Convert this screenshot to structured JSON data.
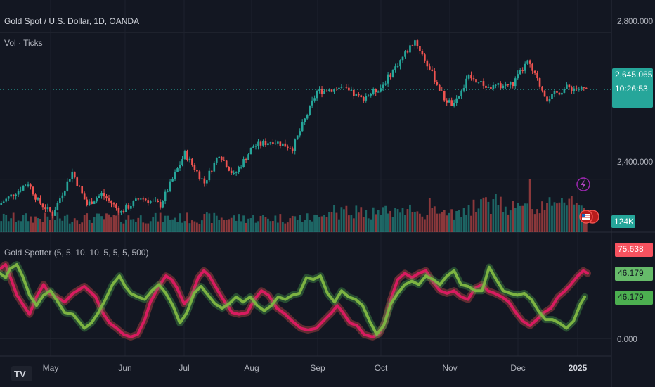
{
  "header": {
    "symbol": "Gold Spot / U.S. Dollar, 1D, OANDA",
    "volume_label": "Vol · Ticks",
    "indicator_label": "Gold Spotter (5, 5, 10, 10, 5, 5, 5, 500)"
  },
  "price_axis": {
    "ticks": [
      "2,800.000",
      "2,400.000"
    ]
  },
  "indicator_axis": {
    "ticks": [
      "0.000"
    ]
  },
  "tags": {
    "last_price": "2,645.065",
    "countdown": "10:26:53",
    "volume": "124K",
    "ind_red": "75.638",
    "ind_green1": "46.179",
    "ind_green2": "46.179"
  },
  "chart_data": [
    {
      "type": "candlestick",
      "title": "Gold Spot / U.S. Dollar, 1D, OANDA",
      "x_axis_labels": [
        "May",
        "Jun",
        "Jul",
        "Aug",
        "Sep",
        "Oct",
        "Nov",
        "Dec",
        "2025"
      ],
      "y_ticks": [
        2400,
        2800
      ],
      "ylim": [
        2265,
        2870
      ],
      "last_value": 2645.065,
      "anchors": [
        [
          0,
          2330
        ],
        [
          12,
          2390
        ],
        [
          16,
          2340
        ],
        [
          22,
          2305
        ],
        [
          30,
          2420
        ],
        [
          36,
          2330
        ],
        [
          42,
          2360
        ],
        [
          50,
          2310
        ],
        [
          58,
          2350
        ],
        [
          66,
          2330
        ],
        [
          76,
          2470
        ],
        [
          84,
          2390
        ],
        [
          90,
          2470
        ],
        [
          96,
          2410
        ],
        [
          104,
          2490
        ],
        [
          112,
          2505
        ],
        [
          120,
          2485
        ],
        [
          130,
          2640
        ],
        [
          140,
          2650
        ],
        [
          148,
          2620
        ],
        [
          156,
          2650
        ],
        [
          170,
          2780
        ],
        [
          176,
          2700
        ],
        [
          182,
          2620
        ],
        [
          186,
          2600
        ],
        [
          192,
          2680
        ],
        [
          200,
          2650
        ],
        [
          210,
          2660
        ],
        [
          216,
          2720
        ],
        [
          224,
          2620
        ],
        [
          232,
          2650
        ],
        [
          240,
          2645
        ]
      ],
      "colors": {
        "up": "#26a69a",
        "down": "#ef5350"
      }
    },
    {
      "type": "bar",
      "title": "Vol · Ticks",
      "last_value": "124K",
      "colors": {
        "up": "#26a69a",
        "down": "#ef5350"
      }
    },
    {
      "type": "line",
      "title": "Gold Spotter (5, 5, 10, 10, 5, 5, 5, 500)",
      "ylim": [
        -15,
        110
      ],
      "y_ticks": [
        0
      ],
      "series": [
        {
          "color": "#ef5350",
          "last_value": 75.638,
          "points": [
            [
              0,
              80
            ],
            [
              8,
              85
            ],
            [
              14,
              72
            ],
            [
              24,
              50
            ],
            [
              32,
              40
            ],
            [
              42,
              28
            ],
            [
              52,
              48
            ],
            [
              62,
              62
            ],
            [
              70,
              52
            ],
            [
              80,
              48
            ],
            [
              92,
              42
            ],
            [
              104,
              52
            ],
            [
              120,
              60
            ],
            [
              136,
              48
            ],
            [
              146,
              30
            ],
            [
              156,
              18
            ],
            [
              166,
              12
            ],
            [
              176,
              5
            ],
            [
              186,
              2
            ],
            [
              196,
              5
            ],
            [
              206,
              22
            ],
            [
              214,
              42
            ],
            [
              226,
              60
            ],
            [
              236,
              72
            ],
            [
              244,
              68
            ],
            [
              252,
              58
            ],
            [
              262,
              40
            ],
            [
              272,
              48
            ],
            [
              282,
              70
            ],
            [
              290,
              78
            ],
            [
              298,
              72
            ],
            [
              310,
              55
            ],
            [
              320,
              42
            ],
            [
              330,
              30
            ],
            [
              340,
              28
            ],
            [
              352,
              30
            ],
            [
              362,
              45
            ],
            [
              372,
              55
            ],
            [
              382,
              50
            ],
            [
              394,
              35
            ],
            [
              406,
              28
            ],
            [
              416,
              20
            ],
            [
              428,
              12
            ],
            [
              438,
              10
            ],
            [
              450,
              12
            ],
            [
              462,
              22
            ],
            [
              472,
              30
            ],
            [
              480,
              38
            ],
            [
              488,
              30
            ],
            [
              498,
              18
            ],
            [
              508,
              15
            ],
            [
              518,
              5
            ],
            [
              530,
              2
            ],
            [
              540,
              6
            ],
            [
              548,
              20
            ],
            [
              556,
              45
            ],
            [
              566,
              68
            ],
            [
              576,
              75
            ],
            [
              586,
              70
            ],
            [
              596,
              75
            ],
            [
              606,
              78
            ],
            [
              616,
              65
            ],
            [
              626,
              55
            ],
            [
              636,
              52
            ],
            [
              646,
              55
            ],
            [
              656,
              48
            ],
            [
              666,
              45
            ],
            [
              676,
              58
            ],
            [
              686,
              62
            ],
            [
              694,
              55
            ],
            [
              704,
              52
            ],
            [
              714,
              48
            ],
            [
              724,
              42
            ],
            [
              734,
              30
            ],
            [
              744,
              20
            ],
            [
              754,
              15
            ],
            [
              764,
              22
            ],
            [
              774,
              30
            ],
            [
              784,
              35
            ],
            [
              794,
              48
            ],
            [
              804,
              55
            ],
            [
              812,
              62
            ],
            [
              822,
              72
            ],
            [
              830,
              78
            ],
            [
              836,
              75
            ]
          ]
        },
        {
          "color": "#4caf50",
          "last_value": 46.179,
          "points": [
            [
              0,
              75
            ],
            [
              8,
              70
            ],
            [
              14,
              80
            ],
            [
              24,
              85
            ],
            [
              32,
              72
            ],
            [
              42,
              50
            ],
            [
              52,
              38
            ],
            [
              62,
              50
            ],
            [
              72,
              55
            ],
            [
              80,
              45
            ],
            [
              92,
              30
            ],
            [
              104,
              28
            ],
            [
              112,
              20
            ],
            [
              120,
              12
            ],
            [
              130,
              18
            ],
            [
              140,
              30
            ],
            [
              150,
              45
            ],
            [
              160,
              62
            ],
            [
              170,
              72
            ],
            [
              178,
              60
            ],
            [
              186,
              52
            ],
            [
              196,
              48
            ],
            [
              206,
              45
            ],
            [
              216,
              55
            ],
            [
              226,
              62
            ],
            [
              236,
              52
            ],
            [
              246,
              38
            ],
            [
              256,
              18
            ],
            [
              266,
              30
            ],
            [
              276,
              52
            ],
            [
              286,
              60
            ],
            [
              296,
              50
            ],
            [
              306,
              40
            ],
            [
              316,
              35
            ],
            [
              326,
              40
            ],
            [
              336,
              48
            ],
            [
              346,
              42
            ],
            [
              356,
              48
            ],
            [
              366,
              38
            ],
            [
              376,
              32
            ],
            [
              386,
              38
            ],
            [
              396,
              48
            ],
            [
              406,
              45
            ],
            [
              416,
              50
            ],
            [
              426,
              52
            ],
            [
              436,
              70
            ],
            [
              446,
              68
            ],
            [
              456,
              72
            ],
            [
              466,
              52
            ],
            [
              476,
              42
            ],
            [
              486,
              55
            ],
            [
              496,
              48
            ],
            [
              506,
              45
            ],
            [
              516,
              38
            ],
            [
              526,
              20
            ],
            [
              536,
              5
            ],
            [
              546,
              15
            ],
            [
              556,
              40
            ],
            [
              566,
              52
            ],
            [
              576,
              62
            ],
            [
              586,
              66
            ],
            [
              596,
              62
            ],
            [
              606,
              72
            ],
            [
              616,
              68
            ],
            [
              626,
              62
            ],
            [
              636,
              72
            ],
            [
              646,
              78
            ],
            [
              656,
              62
            ],
            [
              666,
              60
            ],
            [
              676,
              55
            ],
            [
              686,
              55
            ],
            [
              696,
              82
            ],
            [
              706,
              68
            ],
            [
              716,
              55
            ],
            [
              726,
              52
            ],
            [
              736,
              50
            ],
            [
              746,
              52
            ],
            [
              756,
              45
            ],
            [
              766,
              32
            ],
            [
              776,
              22
            ],
            [
              786,
              22
            ],
            [
              796,
              18
            ],
            [
              806,
              12
            ],
            [
              816,
              20
            ],
            [
              826,
              40
            ],
            [
              832,
              48
            ]
          ]
        }
      ]
    }
  ]
}
